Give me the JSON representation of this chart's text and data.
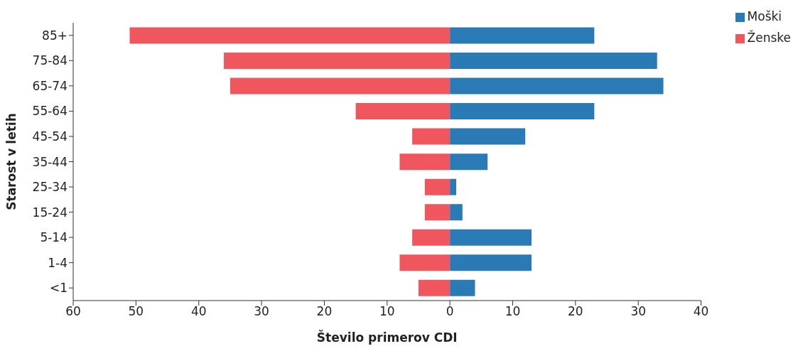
{
  "chart_data": {
    "type": "bar",
    "orientation": "horizontal",
    "stacked": true,
    "xlabel": "Število primerov CDI",
    "ylabel": "Starost v letih",
    "categories": [
      "85+",
      "75-84",
      "65-74",
      "55-64",
      "45-54",
      "35-44",
      "25-34",
      "15-24",
      "5-14",
      "1-4",
      "<1"
    ],
    "series": [
      {
        "name": "Ženske",
        "color": "#f0565e",
        "values": [
          -51,
          -36,
          -35,
          -15,
          -6,
          -8,
          -4,
          -4,
          -6,
          -8,
          -5
        ]
      },
      {
        "name": "Moški",
        "color": "#2a7ab5",
        "values": [
          23,
          33,
          34,
          23,
          12,
          6,
          1,
          2,
          13,
          13,
          4
        ]
      }
    ],
    "xlim": [
      -60,
      40
    ],
    "xticks": [
      {
        "value": -60,
        "label": "60"
      },
      {
        "value": -50,
        "label": "50"
      },
      {
        "value": -40,
        "label": "40"
      },
      {
        "value": -30,
        "label": "30"
      },
      {
        "value": -20,
        "label": "20"
      },
      {
        "value": -10,
        "label": "10"
      },
      0,
      10,
      20,
      30,
      40
    ],
    "legend": "top right",
    "grid": false
  }
}
